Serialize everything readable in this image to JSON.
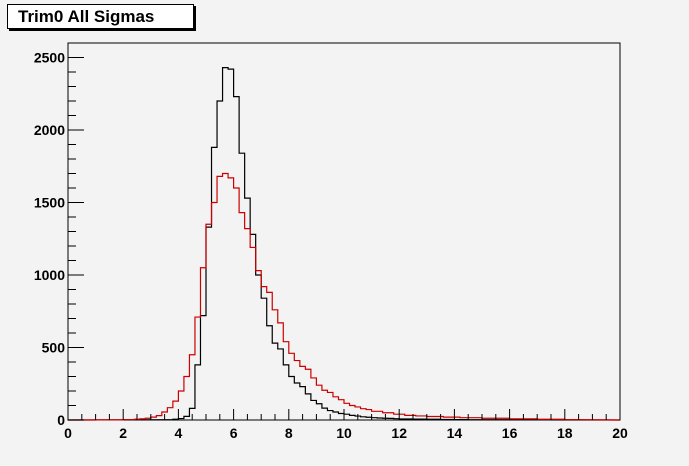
{
  "chart_data": {
    "type": "step-histogram",
    "title": "Trim0 All Sigmas",
    "xlabel": "",
    "ylabel": "",
    "xlim": [
      0,
      20
    ],
    "ylim": [
      0,
      2600
    ],
    "x_ticks": [
      "0",
      "2",
      "4",
      "6",
      "8",
      "10",
      "12",
      "14",
      "16",
      "18",
      "20"
    ],
    "y_ticks": [
      "0",
      "500",
      "1000",
      "1500",
      "2000",
      "2500"
    ],
    "bin_width": 0.2,
    "grid": false,
    "legend": "none",
    "series": [
      {
        "color": "#000000",
        "bin_starts": [
          3.6,
          3.8,
          4.0,
          4.2,
          4.4,
          4.6,
          4.8,
          5.0,
          5.2,
          5.4,
          5.6,
          5.8,
          6.0,
          6.2,
          6.4,
          6.6,
          6.8,
          7.0,
          7.2,
          7.4,
          7.6,
          7.8,
          8.0,
          8.2,
          8.4,
          8.6,
          8.8,
          9.0,
          9.2,
          9.4,
          9.6,
          9.8,
          10.0,
          10.2,
          10.4,
          10.6,
          10.8,
          11.0,
          11.2,
          11.4,
          11.6,
          11.8,
          12.0,
          12.5,
          13.0,
          13.5,
          14.0,
          14.5,
          15.0,
          16.0,
          17.0
        ],
        "values": [
          2,
          5,
          10,
          25,
          80,
          380,
          720,
          1330,
          1880,
          2200,
          2430,
          2420,
          2230,
          1840,
          1530,
          1280,
          1000,
          840,
          650,
          530,
          490,
          380,
          300,
          255,
          230,
          180,
          135,
          112,
          82,
          65,
          55,
          45,
          40,
          32,
          27,
          22,
          19,
          16,
          14,
          12,
          11,
          9,
          7,
          6,
          5,
          4,
          3,
          2,
          2,
          1,
          1
        ]
      },
      {
        "color": "#cc0000",
        "bin_starts": [
          0.0,
          1.0,
          2.0,
          2.4,
          2.6,
          2.8,
          3.0,
          3.2,
          3.4,
          3.6,
          3.8,
          4.0,
          4.2,
          4.4,
          4.6,
          4.8,
          5.0,
          5.2,
          5.4,
          5.6,
          5.8,
          6.0,
          6.2,
          6.4,
          6.6,
          6.8,
          7.0,
          7.2,
          7.4,
          7.6,
          7.8,
          8.0,
          8.2,
          8.4,
          8.6,
          8.8,
          9.0,
          9.2,
          9.4,
          9.6,
          9.8,
          10.0,
          10.2,
          10.4,
          10.6,
          10.8,
          11.0,
          11.4,
          11.8,
          12.2,
          12.6,
          13.0,
          13.6,
          14.2,
          15.0,
          16.0,
          17.0,
          18.0
        ],
        "values": [
          0,
          1,
          3,
          5,
          8,
          12,
          20,
          30,
          55,
          85,
          130,
          200,
          300,
          450,
          710,
          1050,
          1350,
          1500,
          1680,
          1700,
          1670,
          1600,
          1430,
          1320,
          1190,
          1030,
          920,
          880,
          760,
          670,
          540,
          460,
          410,
          370,
          350,
          290,
          240,
          205,
          190,
          160,
          140,
          115,
          100,
          90,
          78,
          72,
          60,
          50,
          40,
          32,
          28,
          24,
          20,
          16,
          12,
          8,
          5,
          3
        ]
      }
    ]
  }
}
